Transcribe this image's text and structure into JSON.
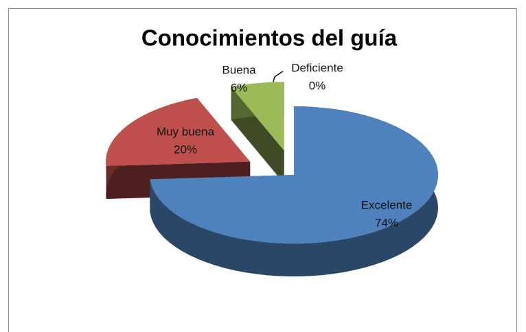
{
  "chart_data": {
    "type": "pie3d",
    "title": "Conocimientos del guía",
    "categories": [
      "Excelente",
      "Muy buena",
      "Buena",
      "Deficiente"
    ],
    "values": [
      74,
      20,
      6,
      0
    ],
    "value_labels": [
      "74%",
      "20%",
      "6%",
      "0%"
    ],
    "colors": [
      "#4f81bd",
      "#c0504d",
      "#9bbb59",
      "#8064a2"
    ]
  }
}
